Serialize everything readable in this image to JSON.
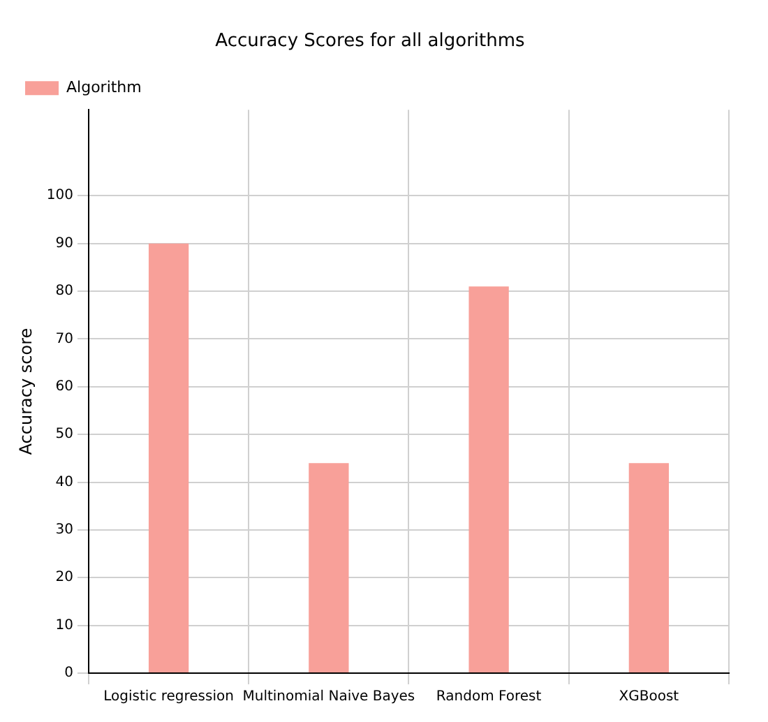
{
  "chart_data": {
    "type": "bar",
    "title": "Accuracy Scores for all algorithms",
    "ylabel": "Accuracy score",
    "categories": [
      "Logistic regression",
      "Multinomial Naive Bayes",
      "Random Forest",
      "XGBoost"
    ],
    "series": [
      {
        "name": "Algorithm",
        "color": "#f8a099",
        "values": [
          90,
          44,
          81,
          44
        ]
      }
    ],
    "ylim": [
      0,
      118
    ],
    "yticks": [
      0,
      10,
      20,
      30,
      40,
      50,
      60,
      70,
      80,
      90,
      100
    ],
    "grid": true,
    "legend": "top left"
  }
}
